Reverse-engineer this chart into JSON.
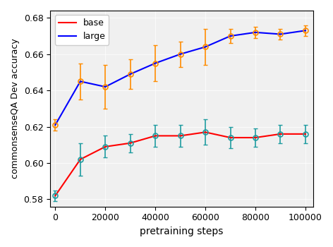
{
  "title": "",
  "xlabel": "pretraining steps",
  "ylabel": "commonsenseQA Dev accuracy",
  "xlim": [
    -2000,
    103000
  ],
  "ylim": [
    0.576,
    0.684
  ],
  "yticks": [
    0.58,
    0.6,
    0.62,
    0.64,
    0.66,
    0.68
  ],
  "xticks": [
    0,
    20000,
    40000,
    60000,
    80000,
    100000
  ],
  "xticklabels": [
    "0",
    "20000",
    "40000",
    "60000",
    "80000",
    "100000"
  ],
  "base": {
    "x": [
      0,
      10000,
      20000,
      30000,
      40000,
      50000,
      60000,
      70000,
      80000,
      90000,
      100000
    ],
    "y": [
      0.582,
      0.602,
      0.609,
      0.611,
      0.615,
      0.615,
      0.617,
      0.614,
      0.614,
      0.616,
      0.616
    ],
    "yerr": [
      0.003,
      0.009,
      0.006,
      0.005,
      0.006,
      0.006,
      0.007,
      0.006,
      0.005,
      0.005,
      0.005
    ],
    "line_color": "#ff0000",
    "marker_color": "#1f9ca0",
    "label": "base"
  },
  "large": {
    "x": [
      0,
      10000,
      20000,
      30000,
      40000,
      50000,
      60000,
      70000,
      80000,
      90000,
      100000
    ],
    "y": [
      0.621,
      0.645,
      0.642,
      0.649,
      0.655,
      0.66,
      0.664,
      0.67,
      0.672,
      0.671,
      0.673
    ],
    "yerr": [
      0.003,
      0.01,
      0.012,
      0.008,
      0.01,
      0.007,
      0.01,
      0.004,
      0.003,
      0.003,
      0.003
    ],
    "line_color": "#0000ff",
    "marker_color": "#ff8c00",
    "label": "large"
  },
  "legend_loc": "upper left",
  "grid": true,
  "bg_color": "#f0f0f0"
}
